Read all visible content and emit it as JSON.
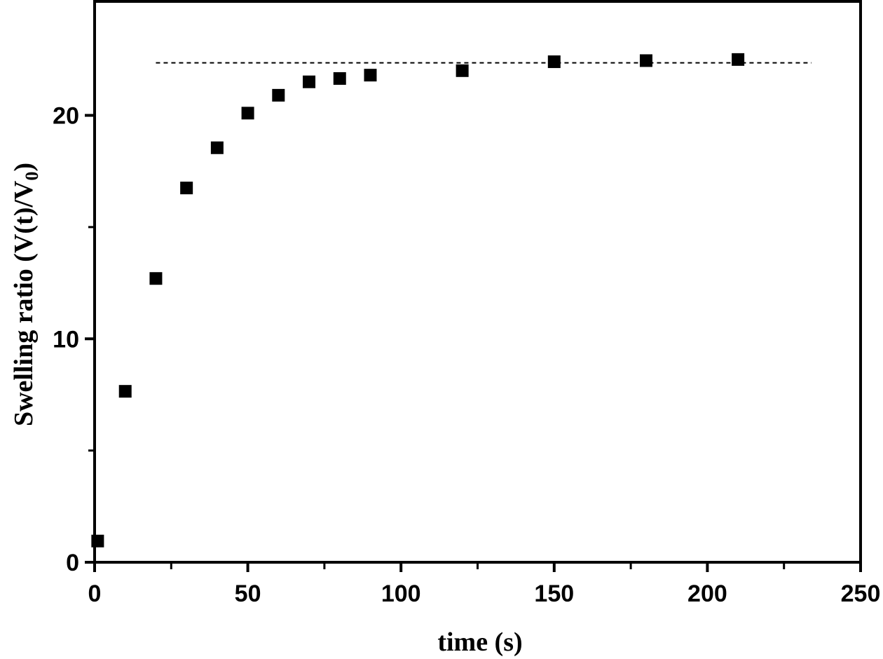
{
  "chart_data": {
    "type": "scatter",
    "title": "",
    "xlabel": "time (s)",
    "ylabel_main": "Swelling ratio (V(t)/V",
    "ylabel_sub": "0",
    "ylabel_end": ")",
    "xlim": [
      0,
      250
    ],
    "ylim": [
      0,
      25.1
    ],
    "x_ticks": [
      0,
      50,
      100,
      150,
      200,
      250
    ],
    "x_tick_labels": [
      "0",
      "50",
      "100",
      "150",
      "200",
      "250"
    ],
    "x_minor_ticks": [
      25,
      75,
      125,
      175,
      225
    ],
    "y_ticks": [
      0,
      10,
      20
    ],
    "y_tick_labels": [
      "0",
      "10",
      "20"
    ],
    "y_minor_ticks": [
      5,
      15
    ],
    "grid": false,
    "series": [
      {
        "name": "swelling ratio",
        "marker": "square",
        "color": "#000000",
        "x": [
          1,
          10,
          20,
          30,
          40,
          50,
          60,
          70,
          80,
          90,
          120,
          150,
          180,
          210
        ],
        "y": [
          0.95,
          7.65,
          12.7,
          16.75,
          18.55,
          20.1,
          20.9,
          21.5,
          21.65,
          21.8,
          22.0,
          22.4,
          22.45,
          22.5
        ]
      }
    ],
    "reference_line": {
      "style": "dashed",
      "y": 22.35,
      "x_start": 20,
      "x_end": 234
    }
  }
}
